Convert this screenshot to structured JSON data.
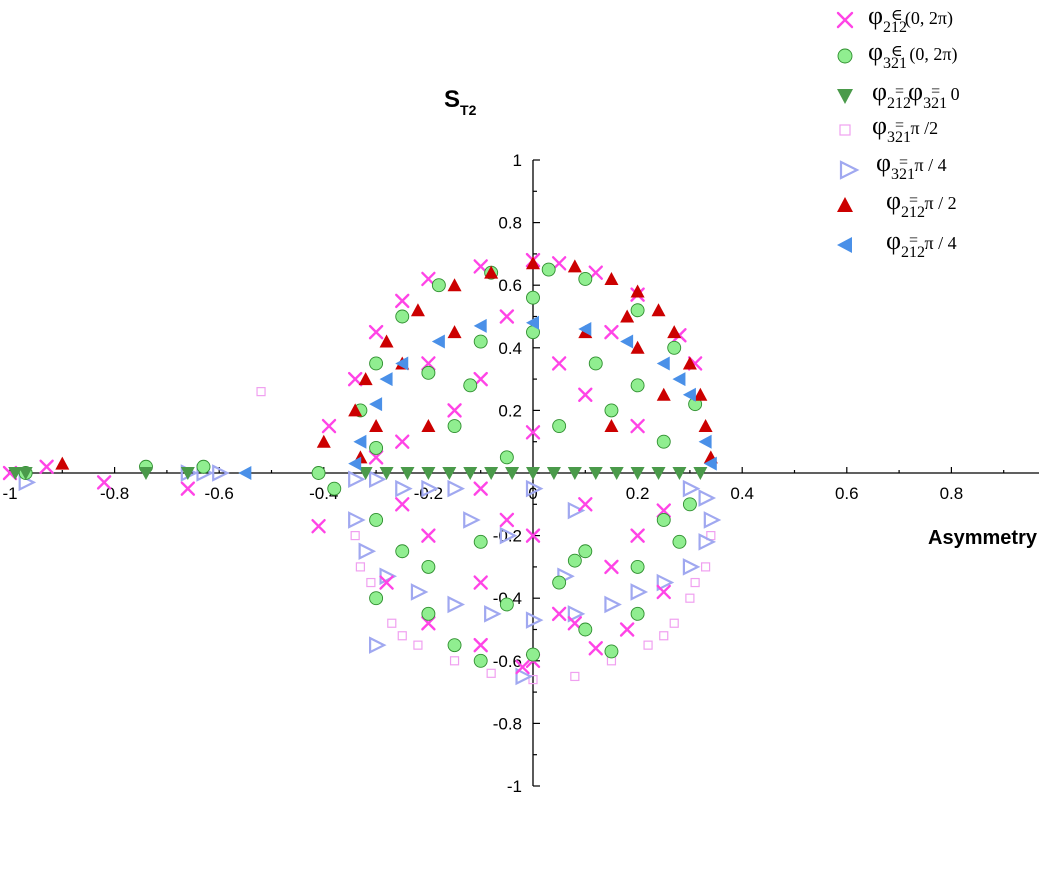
{
  "chart_data": {
    "type": "scatter",
    "title": "",
    "xlabel": "Asymmetry",
    "ylabel": "S",
    "ylabel_sub": "T2",
    "xlim": [
      -1,
      1
    ],
    "ylim": [
      -1,
      1
    ],
    "x_ticks": [
      {
        "v": -1,
        "label": "-1"
      },
      {
        "v": -0.8,
        "label": "-0.8"
      },
      {
        "v": -0.6,
        "label": "-0.6"
      },
      {
        "v": -0.4,
        "label": "-0.4"
      },
      {
        "v": -0.2,
        "label": "-0.2"
      },
      {
        "v": 0,
        "label": "0"
      },
      {
        "v": 0.2,
        "label": "0.2"
      },
      {
        "v": 0.4,
        "label": "0.4"
      },
      {
        "v": 0.6,
        "label": "0.6"
      },
      {
        "v": 0.8,
        "label": "0.8"
      }
    ],
    "y_ticks": [
      {
        "v": 1,
        "label": "1"
      },
      {
        "v": 0.8,
        "label": "0.8"
      },
      {
        "v": 0.6,
        "label": "0.6"
      },
      {
        "v": 0.4,
        "label": "0.4"
      },
      {
        "v": 0.2,
        "label": "0.2"
      },
      {
        "v": -0.2,
        "label": "-0.2"
      },
      {
        "v": -0.4,
        "label": "-0.4"
      },
      {
        "v": -0.6,
        "label": "-0.6"
      },
      {
        "v": -0.8,
        "label": "-0.8"
      },
      {
        "v": -1,
        "label": "-1"
      }
    ],
    "grid": false,
    "legend_position": "top-right",
    "series": [
      {
        "legend": {
          "sym": "φ",
          "sub": "212",
          "rel": "∈",
          "rest": "(0, 2π)"
        },
        "marker": "x",
        "color": "#ff44e6",
        "points": [
          [
            -1.0,
            0.0
          ],
          [
            -0.93,
            0.02
          ],
          [
            -0.82,
            -0.03
          ],
          [
            -0.66,
            -0.05
          ],
          [
            -0.41,
            -0.17
          ],
          [
            -0.39,
            0.15
          ],
          [
            -0.34,
            0.3
          ],
          [
            -0.3,
            0.45
          ],
          [
            -0.25,
            0.55
          ],
          [
            -0.2,
            0.62
          ],
          [
            -0.1,
            0.66
          ],
          [
            0.0,
            0.68
          ],
          [
            0.05,
            0.67
          ],
          [
            0.12,
            0.64
          ],
          [
            0.2,
            0.57
          ],
          [
            0.28,
            0.44
          ],
          [
            0.31,
            0.35
          ],
          [
            -0.2,
            0.35
          ],
          [
            -0.1,
            0.3
          ],
          [
            0.05,
            0.35
          ],
          [
            0.15,
            0.45
          ],
          [
            -0.05,
            0.5
          ],
          [
            0.1,
            0.25
          ],
          [
            -0.15,
            0.2
          ],
          [
            0.2,
            0.15
          ],
          [
            -0.25,
            0.1
          ],
          [
            0.0,
            0.13
          ],
          [
            -0.3,
            0.05
          ],
          [
            -0.1,
            -0.05
          ],
          [
            -0.25,
            -0.1
          ],
          [
            0.1,
            -0.1
          ],
          [
            0.25,
            -0.12
          ],
          [
            -0.2,
            -0.2
          ],
          [
            0.0,
            -0.2
          ],
          [
            0.15,
            -0.3
          ],
          [
            -0.1,
            -0.35
          ],
          [
            -0.28,
            -0.35
          ],
          [
            0.25,
            -0.38
          ],
          [
            -0.2,
            -0.48
          ],
          [
            0.05,
            -0.45
          ],
          [
            0.18,
            -0.5
          ],
          [
            -0.1,
            -0.55
          ],
          [
            0.0,
            -0.6
          ],
          [
            0.12,
            -0.56
          ],
          [
            -0.02,
            -0.62
          ],
          [
            0.08,
            -0.48
          ],
          [
            0.2,
            -0.2
          ],
          [
            -0.05,
            -0.15
          ]
        ]
      },
      {
        "legend": {
          "sym": "φ",
          "sub": "321",
          "rel": "∈",
          "rest": " (0, 2π)"
        },
        "marker": "circle",
        "color": "#90ee90",
        "points": [
          [
            -0.97,
            0.0
          ],
          [
            -0.74,
            0.02
          ],
          [
            -0.63,
            0.02
          ],
          [
            -0.41,
            0.0
          ],
          [
            -0.38,
            -0.05
          ],
          [
            -0.33,
            0.2
          ],
          [
            -0.3,
            0.35
          ],
          [
            -0.25,
            0.5
          ],
          [
            -0.18,
            0.6
          ],
          [
            -0.08,
            0.64
          ],
          [
            0.03,
            0.65
          ],
          [
            0.1,
            0.62
          ],
          [
            0.2,
            0.52
          ],
          [
            0.27,
            0.4
          ],
          [
            0.31,
            0.22
          ],
          [
            -0.2,
            0.32
          ],
          [
            -0.12,
            0.28
          ],
          [
            0.0,
            0.45
          ],
          [
            0.12,
            0.35
          ],
          [
            0.2,
            0.28
          ],
          [
            -0.15,
            0.15
          ],
          [
            0.05,
            0.15
          ],
          [
            0.25,
            0.1
          ],
          [
            -0.3,
            0.08
          ],
          [
            0.0,
            0.56
          ],
          [
            -0.1,
            0.42
          ],
          [
            0.15,
            0.2
          ],
          [
            -0.05,
            0.05
          ],
          [
            -0.3,
            -0.15
          ],
          [
            -0.2,
            -0.3
          ],
          [
            -0.1,
            -0.22
          ],
          [
            0.1,
            -0.25
          ],
          [
            0.2,
            -0.3
          ],
          [
            0.25,
            -0.15
          ],
          [
            0.05,
            -0.35
          ],
          [
            -0.2,
            -0.45
          ],
          [
            0.1,
            -0.5
          ],
          [
            -0.15,
            -0.55
          ],
          [
            0.0,
            -0.58
          ],
          [
            0.15,
            -0.57
          ],
          [
            -0.3,
            -0.4
          ],
          [
            -0.25,
            -0.25
          ],
          [
            0.3,
            -0.1
          ],
          [
            0.2,
            -0.45
          ],
          [
            -0.1,
            -0.6
          ],
          [
            0.08,
            -0.28
          ],
          [
            0.28,
            -0.22
          ],
          [
            -0.05,
            -0.42
          ]
        ]
      },
      {
        "legend": {
          "sym": "φ",
          "sub": "212",
          "rel": "=",
          "rest": "φ",
          "sub2": "321",
          "rel2": "=",
          "rest2": " 0"
        },
        "marker": "triangle-down",
        "color": "#4a9a4a",
        "points": [
          [
            -0.99,
            0.0
          ],
          [
            -0.97,
            0.0
          ],
          [
            -0.74,
            0.0
          ],
          [
            -0.66,
            0.0
          ],
          [
            -0.32,
            0.0
          ],
          [
            -0.28,
            0.0
          ],
          [
            -0.24,
            0.0
          ],
          [
            -0.2,
            0.0
          ],
          [
            -0.16,
            0.0
          ],
          [
            -0.12,
            0.0
          ],
          [
            -0.08,
            0.0
          ],
          [
            -0.04,
            0.0
          ],
          [
            0.0,
            0.0
          ],
          [
            0.04,
            0.0
          ],
          [
            0.08,
            0.0
          ],
          [
            0.12,
            0.0
          ],
          [
            0.16,
            0.0
          ],
          [
            0.2,
            0.0
          ],
          [
            0.24,
            0.0
          ],
          [
            0.28,
            0.0
          ],
          [
            0.32,
            0.0
          ]
        ]
      },
      {
        "legend": {
          "sym": "φ",
          "sub": "321",
          "rel": "=",
          "rest": " π /2"
        },
        "marker": "square",
        "color": "#f0a0f0",
        "points": [
          [
            -0.52,
            0.26
          ],
          [
            -0.33,
            -0.3
          ],
          [
            -0.3,
            -0.4
          ],
          [
            -0.27,
            -0.48
          ],
          [
            -0.22,
            -0.55
          ],
          [
            -0.15,
            -0.6
          ],
          [
            -0.08,
            -0.64
          ],
          [
            0.0,
            -0.66
          ],
          [
            0.08,
            -0.65
          ],
          [
            0.15,
            -0.6
          ],
          [
            0.22,
            -0.55
          ],
          [
            0.27,
            -0.48
          ],
          [
            0.3,
            -0.4
          ],
          [
            0.33,
            -0.3
          ],
          [
            0.34,
            -0.2
          ],
          [
            -0.34,
            -0.2
          ],
          [
            -0.31,
            -0.35
          ],
          [
            0.31,
            -0.35
          ],
          [
            -0.25,
            -0.52
          ],
          [
            0.25,
            -0.52
          ]
        ]
      },
      {
        "legend": {
          "sym": "φ",
          "sub": "321",
          "rel": "=",
          "rest": " π / 4"
        },
        "marker": "triangle-right",
        "color": "#a0a8f0",
        "points": [
          [
            -0.97,
            -0.03
          ],
          [
            -0.66,
            0.0
          ],
          [
            -0.63,
            0.0
          ],
          [
            -0.6,
            0.0
          ],
          [
            -0.34,
            -0.02
          ],
          [
            -0.3,
            -0.02
          ],
          [
            -0.25,
            -0.05
          ],
          [
            -0.2,
            -0.05
          ],
          [
            -0.15,
            -0.05
          ],
          [
            0.3,
            -0.05
          ],
          [
            0.33,
            -0.08
          ],
          [
            0.34,
            -0.15
          ],
          [
            0.33,
            -0.22
          ],
          [
            0.3,
            -0.3
          ],
          [
            0.25,
            -0.35
          ],
          [
            0.2,
            -0.38
          ],
          [
            0.15,
            -0.42
          ],
          [
            0.08,
            -0.45
          ],
          [
            0.0,
            -0.47
          ],
          [
            -0.08,
            -0.45
          ],
          [
            -0.15,
            -0.42
          ],
          [
            -0.22,
            -0.38
          ],
          [
            -0.28,
            -0.33
          ],
          [
            -0.32,
            -0.25
          ],
          [
            -0.34,
            -0.15
          ],
          [
            -0.05,
            -0.2
          ],
          [
            0.06,
            -0.33
          ],
          [
            -0.12,
            -0.15
          ],
          [
            -0.3,
            -0.55
          ],
          [
            -0.02,
            -0.65
          ],
          [
            0.0,
            -0.05
          ],
          [
            0.08,
            -0.12
          ]
        ]
      },
      {
        "legend": {
          "sym": "φ",
          "sub": "212",
          "rel": "=",
          "rest": " π / 2"
        },
        "marker": "triangle-up",
        "color": "#cc0000",
        "points": [
          [
            -0.9,
            0.03
          ],
          [
            -0.4,
            0.1
          ],
          [
            -0.34,
            0.2
          ],
          [
            -0.32,
            0.3
          ],
          [
            -0.28,
            0.42
          ],
          [
            -0.22,
            0.52
          ],
          [
            -0.15,
            0.6
          ],
          [
            -0.08,
            0.64
          ],
          [
            0.0,
            0.67
          ],
          [
            0.08,
            0.66
          ],
          [
            0.15,
            0.62
          ],
          [
            0.2,
            0.58
          ],
          [
            0.24,
            0.52
          ],
          [
            0.27,
            0.45
          ],
          [
            0.3,
            0.35
          ],
          [
            0.32,
            0.25
          ],
          [
            0.33,
            0.15
          ],
          [
            0.34,
            0.05
          ],
          [
            -0.33,
            0.05
          ],
          [
            -0.25,
            0.35
          ],
          [
            -0.15,
            0.45
          ],
          [
            0.1,
            0.45
          ],
          [
            0.2,
            0.4
          ],
          [
            -0.2,
            0.15
          ],
          [
            0.15,
            0.15
          ],
          [
            0.25,
            0.25
          ],
          [
            0.18,
            0.5
          ],
          [
            -0.3,
            0.15
          ]
        ]
      },
      {
        "legend": {
          "sym": "φ",
          "sub": "212",
          "rel": "=",
          "rest": " π / 4"
        },
        "marker": "triangle-left",
        "color": "#4a90e8",
        "points": [
          [
            -0.55,
            0.0
          ],
          [
            -0.33,
            0.1
          ],
          [
            -0.3,
            0.22
          ],
          [
            -0.25,
            0.35
          ],
          [
            -0.18,
            0.42
          ],
          [
            -0.1,
            0.47
          ],
          [
            0.0,
            0.48
          ],
          [
            0.1,
            0.46
          ],
          [
            0.18,
            0.42
          ],
          [
            0.25,
            0.35
          ],
          [
            0.3,
            0.25
          ],
          [
            0.33,
            0.1
          ],
          [
            0.34,
            0.03
          ],
          [
            -0.34,
            0.03
          ],
          [
            0.28,
            0.3
          ],
          [
            -0.28,
            0.3
          ]
        ]
      }
    ]
  }
}
